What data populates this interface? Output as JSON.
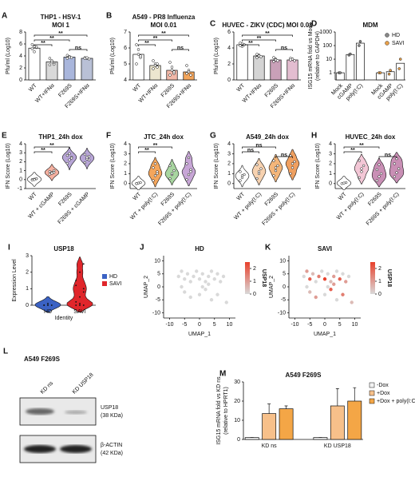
{
  "chart_data": [
    {
      "type": "bar",
      "panel": "A",
      "title": [
        "THP1 - HSV-1",
        "MOI 1"
      ],
      "ylabel": [
        "Pfu/ml (Log10)"
      ],
      "ylim": [
        0,
        8
      ],
      "yticks": [
        0,
        2,
        4,
        6,
        8
      ],
      "xtick_rotation": 45,
      "categories": [
        "WT",
        "WT+IFNα",
        "F269S",
        "F269S+IFNα"
      ],
      "values": [
        5.3,
        3.0,
        3.8,
        3.6
      ],
      "colors": [
        "#ffffff",
        "#d9d9d9",
        "#a9b6dc",
        "#b9c0d6"
      ],
      "points": [
        [
          5.9,
          5.6,
          5.4,
          5.2,
          4.7,
          5.5
        ],
        [
          3.6,
          3.2,
          2.8,
          2.5,
          3.0,
          2.6
        ],
        [
          4.1,
          3.9,
          3.7,
          3.6,
          3.8
        ],
        [
          3.7,
          3.6,
          3.5,
          3.6,
          3.7
        ]
      ],
      "brackets": [
        {
          "between": [
            "WT",
            "F269S+IFNα"
          ],
          "label": "**"
        },
        {
          "between": [
            "WT",
            "F269S"
          ],
          "label": "**"
        },
        {
          "between": [
            "WT",
            "WT+IFNα"
          ],
          "label": "**"
        },
        {
          "between": [
            "F269S",
            "F269S+IFNα"
          ],
          "label": "ns"
        }
      ]
    },
    {
      "type": "bar",
      "panel": "B",
      "title": [
        "A549 - PR8 Influenza",
        "MOI 0.01"
      ],
      "ylabel": [
        "Pfu/ml (Log10)"
      ],
      "ylim": [
        4,
        7
      ],
      "yticks": [
        4,
        5,
        6,
        7
      ],
      "xtick_rotation": 45,
      "categories": [
        "WT",
        "WT+IFNα",
        "F269S",
        "F269S+IFNα"
      ],
      "values": [
        5.6,
        4.9,
        4.6,
        4.5
      ],
      "colors": [
        "#ffffff",
        "#ece6cf",
        "#f2b8a8",
        "#f4a65c"
      ],
      "points": [
        [
          6.2,
          5.9,
          5.4,
          5.0,
          5.6,
          5.5
        ],
        [
          5.2,
          5.0,
          4.8,
          4.7,
          4.9,
          5.0
        ],
        [
          5.1,
          4.8,
          4.4,
          4.3,
          4.6,
          4.5
        ],
        [
          4.9,
          4.6,
          4.3,
          4.4,
          4.5
        ]
      ],
      "brackets": [
        {
          "between": [
            "WT",
            "F269S+IFNα"
          ],
          "label": "**"
        },
        {
          "between": [
            "WT",
            "F269S"
          ],
          "label": "**"
        },
        {
          "between": [
            "WT",
            "WT+IFNα"
          ],
          "label": "**"
        },
        {
          "between": [
            "F269S",
            "F269S+IFNα"
          ],
          "label": "ns"
        }
      ]
    },
    {
      "type": "bar",
      "panel": "C",
      "title": [
        "HUVEC - ZIKV (CDC) MOI 0.01"
      ],
      "ylabel": [
        "Pfu/ml (Log10)"
      ],
      "ylim": [
        0,
        6
      ],
      "yticks": [
        0,
        2,
        4,
        6
      ],
      "xtick_rotation": 45,
      "categories": [
        "WT",
        "WT+IFNα",
        "F269S",
        "F269S+IFNα"
      ],
      "values": [
        4.4,
        3.0,
        2.5,
        2.5
      ],
      "colors": [
        "#ffffff",
        "#d4d4d4",
        "#c9a0b8",
        "#e3bdd0"
      ],
      "points": [
        [
          4.6,
          4.5,
          4.4,
          4.3,
          4.2
        ],
        [
          3.2,
          3.1,
          2.9,
          2.8,
          3.0
        ],
        [
          2.8,
          2.6,
          2.4,
          2.3,
          2.5
        ],
        [
          2.7,
          2.6,
          2.4,
          2.5,
          2.6
        ]
      ],
      "brackets": [
        {
          "between": [
            "WT",
            "F269S+IFNα"
          ],
          "label": "**"
        },
        {
          "between": [
            "WT",
            "F269S"
          ],
          "label": "**"
        },
        {
          "between": [
            "WT",
            "WT+IFNα"
          ],
          "label": "**"
        },
        {
          "between": [
            "F269S",
            "F269S+IFNα"
          ],
          "label": "ns"
        }
      ]
    },
    {
      "type": "grouped_bar",
      "group_by": "series",
      "panel": "D",
      "title": [
        "MDM"
      ],
      "ylabel": [
        "ISG15 mRNA fold vs Mock",
        "(relative to GAPDH)"
      ],
      "ylog": true,
      "ylim": [
        0.3,
        1000
      ],
      "yticks": [
        1,
        10,
        100,
        1000
      ],
      "xtick_rotation": 45,
      "legend": "upper right",
      "categories": [
        "Mock",
        "cGAMP",
        "poly(I:C)"
      ],
      "series": [
        {
          "name": "HD",
          "color": "#ffffff",
          "dot": "#888888",
          "values": [
            1,
            22,
            150
          ],
          "points": [
            [
              1,
              1
            ],
            [
              20,
              24
            ],
            [
              100,
              200
            ]
          ]
        },
        {
          "name": "SAVI",
          "color": "#ffffff",
          "dot": "#e8a04a",
          "values": [
            1,
            1.2,
            5
          ],
          "points": [
            [
              1,
              1
            ],
            [
              0.8,
              1.5
            ],
            [
              2,
              10
            ]
          ]
        }
      ]
    },
    {
      "type": "violin",
      "panel": "E",
      "title": [
        "THP1_24h dox"
      ],
      "ylabel": [
        "IFN Score (Log10)"
      ],
      "ylim": [
        -1,
        4
      ],
      "yticks": [
        -1,
        0,
        1,
        2,
        3,
        4
      ],
      "xtick_rotation": 45,
      "categories": [
        "WT",
        "WT + cGAMP",
        "F269S",
        "F269S + cGAMP"
      ],
      "colors": [
        "#ffffff",
        "#f5b0a0",
        "#b7a5d6",
        "#b7a5d6"
      ],
      "points": [
        [
          0.0,
          0.05,
          0.1,
          -0.05,
          0.0,
          0.1
        ],
        [
          0.6,
          0.8,
          1.0,
          0.9,
          0.7,
          0.8
        ],
        [
          1.8,
          2.2,
          2.5,
          2.7,
          2.9,
          2.4
        ],
        [
          1.9,
          2.3,
          2.6,
          2.8,
          2.5,
          2.2
        ]
      ],
      "brackets": [
        {
          "between": [
            "WT",
            "F269S"
          ],
          "label": "**"
        },
        {
          "between": [
            "WT",
            "WT + cGAMP"
          ],
          "label": "**"
        }
      ]
    },
    {
      "type": "violin",
      "panel": "F",
      "title": [
        "JTC_24h dox"
      ],
      "ylabel": [
        "IFN Score (Log10)"
      ],
      "ylim": [
        -0.5,
        4
      ],
      "yticks": [
        0,
        1,
        2,
        3,
        4
      ],
      "xtick_rotation": 45,
      "categories": [
        "WT",
        "WT + poly(I:C)",
        "F269S",
        "F269S + poly(I:C)"
      ],
      "colors": [
        "#ffffff",
        "#f4a65c",
        "#a8d5a0",
        "#c7a6d6"
      ],
      "points": [
        [
          0,
          0.05,
          0.1,
          0
        ],
        [
          0.3,
          0.8,
          1.2,
          1.6,
          2.0,
          1.0
        ],
        [
          0.5,
          0.9,
          1.3,
          1.8,
          1.0
        ],
        [
          0.4,
          0.9,
          1.4,
          2.0,
          2.6,
          1.2
        ]
      ],
      "brackets": [
        {
          "between": [
            "WT",
            "F269S"
          ],
          "label": "**"
        },
        {
          "between": [
            "WT",
            "WT + poly(I:C)"
          ],
          "label": "**"
        }
      ]
    },
    {
      "type": "violin",
      "panel": "G",
      "title": [
        "A549_24h dox"
      ],
      "ylabel": [
        "IFN Score (Log10)"
      ],
      "ylim": [
        -0.5,
        4
      ],
      "yticks": [
        0,
        1,
        2,
        3,
        4
      ],
      "xtick_rotation": 45,
      "categories": [
        "WT",
        "WT + poly(I:C)",
        "F269S",
        "F269S + poly(I:C)"
      ],
      "colors": [
        "#ffffff",
        "#f7d2b0",
        "#f4b67a",
        "#f0a060"
      ],
      "points": [
        [
          0.3,
          0.6,
          0.9,
          1.2,
          0.8
        ],
        [
          0.5,
          1.0,
          1.5,
          1.9,
          1.2
        ],
        [
          0.8,
          1.3,
          1.8,
          2.3,
          1.6
        ],
        [
          1.0,
          1.6,
          2.2,
          2.8,
          2.0
        ]
      ],
      "brackets": [
        {
          "between": [
            "WT",
            "F269S"
          ],
          "label": "ns"
        },
        {
          "between": [
            "WT",
            "WT + poly(I:C)"
          ],
          "label": "ns"
        },
        {
          "between": [
            "F269S",
            "F269S + poly(I:C)"
          ],
          "label": "ns"
        }
      ]
    },
    {
      "type": "violin",
      "panel": "H",
      "title": [
        "HUVEC_24h dox"
      ],
      "ylabel": [
        "IFN Score (Log10)"
      ],
      "ylim": [
        -0.5,
        4
      ],
      "yticks": [
        0,
        1,
        2,
        3,
        4
      ],
      "xtick_rotation": 45,
      "categories": [
        "WT",
        "WT + poly(I:C)",
        "F269S",
        "F269S + poly(I:C)"
      ],
      "colors": [
        "#ffffff",
        "#f3c7d6",
        "#c98fb5",
        "#c98fb5"
      ],
      "points": [
        [
          0,
          0.05,
          0.1
        ],
        [
          0.6,
          1.2,
          1.8,
          2.3,
          1.5
        ],
        [
          0.3,
          0.7,
          1.0,
          1.4,
          1.9
        ],
        [
          0.7,
          1.1,
          1.5,
          2.0,
          2.5
        ]
      ],
      "brackets": [
        {
          "between": [
            "WT",
            "F269S"
          ],
          "label": "**"
        },
        {
          "between": [
            "WT",
            "WT + poly(I:C)"
          ],
          "label": "**"
        },
        {
          "between": [
            "F269S",
            "F269S + poly(I:C)"
          ],
          "label": "ns"
        }
      ]
    },
    {
      "type": "violin",
      "panel": "I",
      "title": [
        "USP18"
      ],
      "ylabel": [
        "Expression Level"
      ],
      "xlabel": "Identity",
      "ylim": [
        0,
        3
      ],
      "yticks": [
        0,
        1,
        2,
        3
      ],
      "xtick_rotation": 0,
      "categories": [
        "HD",
        "SAVI"
      ],
      "colors": [
        "#3b62c4",
        "#e0262b"
      ],
      "legend_labels": [
        "HD",
        "SAVI"
      ],
      "points": [
        [
          0,
          0,
          0,
          0,
          0.1
        ],
        [
          0,
          0.5,
          1.0,
          1.5,
          2.0,
          2.5,
          0.2,
          0.1,
          0.8,
          1.2,
          0,
          0
        ]
      ]
    },
    {
      "type": "scatter",
      "panel": "J",
      "title": [
        "HD"
      ],
      "ylabel": [
        "UMAP_2"
      ],
      "xlabel": "UMAP_1",
      "xlim": [
        -12,
        12
      ],
      "xticks": [
        -10,
        -5,
        0,
        5,
        10
      ],
      "ylim": [
        -12,
        12
      ],
      "yticks": [
        -10,
        -5,
        0,
        5,
        10
      ],
      "colorbar_title": "USP18",
      "clim": [
        0,
        2.5
      ],
      "cticks": [
        0,
        1,
        2
      ],
      "colorscale": [
        "#d9d9d9",
        "#e8412c"
      ],
      "x": [
        -7,
        -6,
        -5,
        -4,
        -3,
        -2,
        -1,
        0,
        1,
        2,
        3,
        4,
        5,
        6,
        7,
        8,
        -5,
        -3,
        0,
        2,
        4,
        6,
        -6,
        1,
        3,
        9
      ],
      "y": [
        4,
        6,
        3,
        5,
        2,
        4,
        6,
        3,
        5,
        2,
        4,
        6,
        3,
        5,
        2,
        4,
        -2,
        -4,
        -3,
        -1,
        -5,
        -3,
        0,
        0,
        1,
        -6
      ],
      "expression": [
        0,
        0,
        0,
        0,
        0,
        0,
        0,
        0,
        0,
        0,
        0,
        0,
        0,
        0,
        0,
        0,
        0,
        0,
        0,
        0,
        0,
        0,
        0,
        0,
        0,
        0
      ]
    },
    {
      "type": "scatter",
      "panel": "K",
      "title": [
        "SAVI"
      ],
      "ylabel": [
        "UMAP_2"
      ],
      "xlabel": "UMAP_1",
      "xlim": [
        -12,
        12
      ],
      "xticks": [
        -10,
        -5,
        0,
        5,
        10
      ],
      "ylim": [
        -12,
        12
      ],
      "yticks": [
        -10,
        -5,
        0,
        5,
        10
      ],
      "colorbar_title": "USP18",
      "clim": [
        0,
        2.5
      ],
      "cticks": [
        0,
        1,
        2
      ],
      "colorscale": [
        "#d9d9d9",
        "#e8412c"
      ],
      "x": [
        -7,
        -6,
        -5,
        -4,
        -3,
        -2,
        -1,
        0,
        1,
        2,
        3,
        4,
        5,
        6,
        7,
        8,
        -5,
        -3,
        0,
        2,
        4,
        6,
        -6,
        1,
        3,
        9
      ],
      "y": [
        4,
        6,
        3,
        5,
        2,
        4,
        6,
        3,
        5,
        2,
        4,
        6,
        3,
        5,
        2,
        4,
        -2,
        -4,
        -3,
        -1,
        -5,
        -3,
        0,
        0,
        1,
        -6
      ],
      "expression": [
        0,
        1,
        2,
        0.5,
        0,
        1.5,
        0,
        2.5,
        0,
        0.5,
        1,
        0,
        2,
        0,
        1,
        0,
        0.5,
        1,
        0,
        2,
        0,
        1.5,
        0,
        0,
        1,
        0.5
      ]
    },
    {
      "type": "grouped_bar",
      "group_by": "categories",
      "panel": "M",
      "title": [
        "A549 F269S"
      ],
      "ylabel": [
        "ISG15 mRNA fold vs KD ns",
        "(relative to HPRT1)"
      ],
      "ylim": [
        0,
        30
      ],
      "yticks": [
        0,
        10,
        20,
        30
      ],
      "xtick_rotation": 0,
      "legend": "right",
      "categories": [
        "KD ns",
        "KD USP18"
      ],
      "series": [
        {
          "name": "-Dox",
          "color": "#f3f3f3",
          "values": [
            1,
            1
          ],
          "errors": [
            0,
            0
          ]
        },
        {
          "name": "+Dox",
          "color": "#f7c08a",
          "values": [
            13.5,
            17.5
          ],
          "errors": [
            5,
            9
          ]
        },
        {
          "name": "+Dox + poly(I:C)",
          "color": "#f4a646",
          "values": [
            16,
            20
          ],
          "errors": [
            1.5,
            7
          ]
        }
      ]
    }
  ],
  "blot": {
    "panel": "L",
    "title": "A549 F269S",
    "lanes": [
      "KD ns",
      "KD USP18"
    ],
    "bands": [
      [
        "USP18",
        "(38 KDa)"
      ],
      [
        "β-ACTIN",
        "(42 KDa)"
      ]
    ]
  }
}
